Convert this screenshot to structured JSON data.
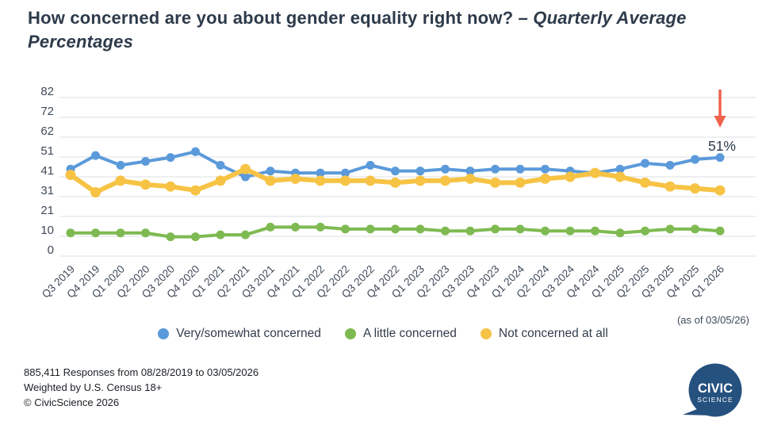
{
  "title": {
    "main": "How concerned are you about gender equality right now?",
    "emphasis": "– Quarterly Average Percentages"
  },
  "as_of": "(as of 03/05/26)",
  "legend": [
    {
      "label": "Very/somewhat concerned",
      "color": "#5b9ada"
    },
    {
      "label": "A little concerned",
      "color": "#7eba51"
    },
    {
      "label": "Not concerned at all",
      "color": "#f7c344"
    }
  ],
  "footer": {
    "line1": "885,411 Responses from 08/28/2019 to 03/05/2026",
    "line2": "Weighted by U.S. Census 18+",
    "line3": "© CivicScience 2026"
  },
  "logo": {
    "line1": "CIVIC",
    "line2": "SCIENCE",
    "color": "#25517f"
  },
  "chart_data": {
    "type": "line",
    "title": "How concerned are you about gender equality right now? – Quarterly Average Percentages",
    "categories": [
      "Q3 2019",
      "Q4 2019",
      "Q1 2020",
      "Q2 2020",
      "Q3 2020",
      "Q4 2020",
      "Q1 2021",
      "Q2 2021",
      "Q3 2021",
      "Q4 2021",
      "Q1 2022",
      "Q2 2022",
      "Q3 2022",
      "Q4 2022",
      "Q1 2023",
      "Q2 2023",
      "Q3 2023",
      "Q4 2023",
      "Q1 2024",
      "Q2 2024",
      "Q3 2024",
      "Q4 2024",
      "Q1 2025",
      "Q2 2025",
      "Q3 2025",
      "Q4 2025",
      "Q1 2026"
    ],
    "series": [
      {
        "name": "Very/somewhat concerned",
        "color": "#5b9ada",
        "values": [
          45,
          52,
          47,
          49,
          51,
          54,
          47,
          41,
          44,
          43,
          43,
          43,
          47,
          44,
          44,
          45,
          44,
          45,
          45,
          45,
          44,
          43,
          45,
          48,
          47,
          50,
          51
        ]
      },
      {
        "name": "A little concerned",
        "color": "#7eba51",
        "values": [
          12,
          12,
          12,
          12,
          10,
          10,
          11,
          11,
          15,
          15,
          15,
          14,
          14,
          14,
          14,
          13,
          13,
          14,
          14,
          13,
          13,
          13,
          12,
          13,
          14,
          14,
          13
        ]
      },
      {
        "name": "Not concerned at all",
        "color": "#f7c344",
        "values": [
          42,
          33,
          39,
          37,
          36,
          34,
          39,
          45,
          39,
          40,
          39,
          39,
          39,
          38,
          39,
          39,
          40,
          38,
          38,
          40,
          41,
          43,
          41,
          38,
          36,
          35,
          34
        ]
      }
    ],
    "y_ticks": [
      0,
      10,
      21,
      31,
      41,
      51,
      62,
      72,
      82
    ],
    "ylim": [
      0,
      82
    ],
    "grid": true,
    "legend_position": "bottom",
    "annotations": [
      {
        "text": "51%",
        "target_series": "Very/somewhat concerned",
        "target_category": "Q1 2026",
        "arrow_color": "#f0624d"
      }
    ]
  }
}
